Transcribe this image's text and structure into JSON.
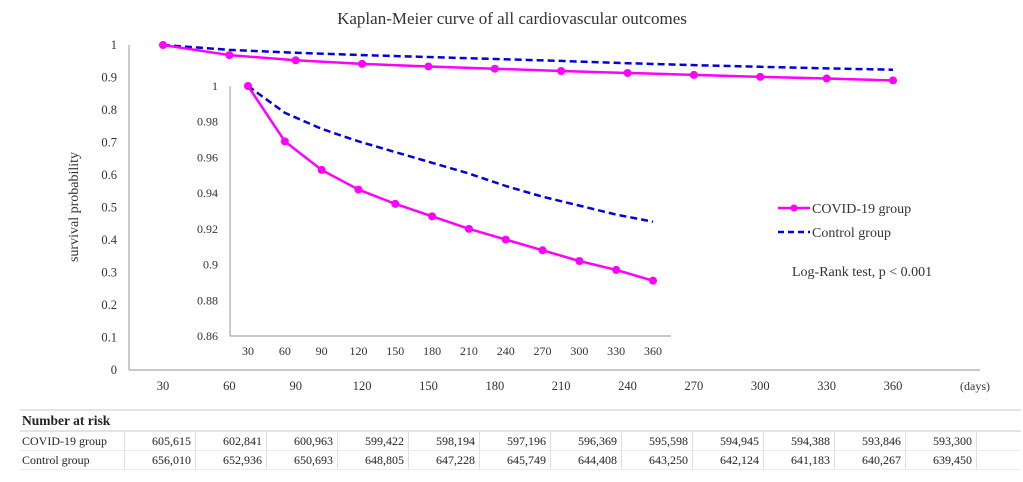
{
  "chart_data": [
    {
      "id": "main",
      "type": "line",
      "title": "Kaplan-Meier curve of all cardiovascular outcomes",
      "xlabel": "(days)",
      "ylabel": "survival probability",
      "x": [
        30,
        60,
        90,
        120,
        150,
        180,
        210,
        240,
        270,
        300,
        330,
        360
      ],
      "x_tick_labels": [
        "30",
        "60",
        "90",
        "120",
        "150",
        "180",
        "210",
        "240",
        "270",
        "300",
        "330",
        "360"
      ],
      "y_tick_labels": [
        "0",
        "0.1",
        "0.2",
        "0.3",
        "0.4",
        "0.5",
        "0.6",
        "0.7",
        "0.8",
        "0.9",
        "1"
      ],
      "y_ticks": [
        0,
        0.1,
        0.2,
        0.3,
        0.4,
        0.5,
        0.6,
        0.7,
        0.8,
        0.9,
        1
      ],
      "ylim": [
        0,
        1
      ],
      "grid": false,
      "series": [
        {
          "name": "COVID-19 group",
          "style": "solid-with-markers",
          "color": "#ff00ff",
          "values": [
            1.0,
            0.969,
            0.953,
            0.942,
            0.934,
            0.927,
            0.92,
            0.914,
            0.908,
            0.902,
            0.897,
            0.891
          ]
        },
        {
          "name": "Control group",
          "style": "dashed",
          "color": "#0000e0",
          "values": [
            1.0,
            0.985,
            0.976,
            0.969,
            0.963,
            0.957,
            0.951,
            0.944,
            0.938,
            0.933,
            0.928,
            0.924
          ]
        }
      ],
      "legend": {
        "placement": "right",
        "entries": [
          "COVID-19 group",
          "Control group"
        ]
      },
      "annotation": "Log-Rank test, p < 0.001"
    },
    {
      "id": "inset",
      "type": "line",
      "title": "",
      "x": [
        30,
        60,
        90,
        120,
        150,
        180,
        210,
        240,
        270,
        300,
        330,
        360
      ],
      "x_tick_labels": [
        "30",
        "60",
        "90",
        "120",
        "150",
        "180",
        "210",
        "240",
        "270",
        "300",
        "330",
        "360"
      ],
      "y_tick_labels": [
        "0.86",
        "0.88",
        "0.9",
        "0.92",
        "0.94",
        "0.96",
        "0.98",
        "1"
      ],
      "y_ticks": [
        0.86,
        0.88,
        0.9,
        0.92,
        0.94,
        0.96,
        0.98,
        1.0
      ],
      "ylim": [
        0.86,
        1.0
      ],
      "grid": false,
      "series": [
        {
          "name": "COVID-19 group",
          "style": "solid-with-markers",
          "color": "#ff00ff",
          "values": [
            1.0,
            0.969,
            0.953,
            0.942,
            0.934,
            0.927,
            0.92,
            0.914,
            0.908,
            0.902,
            0.897,
            0.891
          ]
        },
        {
          "name": "Control group",
          "style": "dashed",
          "color": "#0000e0",
          "values": [
            1.0,
            0.985,
            0.976,
            0.969,
            0.963,
            0.957,
            0.951,
            0.944,
            0.938,
            0.933,
            0.928,
            0.924
          ]
        }
      ]
    }
  ],
  "risk_table": {
    "title": "Number at risk",
    "rows": [
      {
        "label": "COVID-19 group",
        "values": [
          "605,615",
          "602,841",
          "600,963",
          "599,422",
          "598,194",
          "597,196",
          "596,369",
          "595,598",
          "594,945",
          "594,388",
          "593,846",
          "593,300"
        ]
      },
      {
        "label": "Control group",
        "values": [
          "656,010",
          "652,936",
          "650,693",
          "648,805",
          "647,228",
          "645,749",
          "644,408",
          "643,250",
          "642,124",
          "641,183",
          "640,267",
          "639,450"
        ]
      }
    ]
  }
}
